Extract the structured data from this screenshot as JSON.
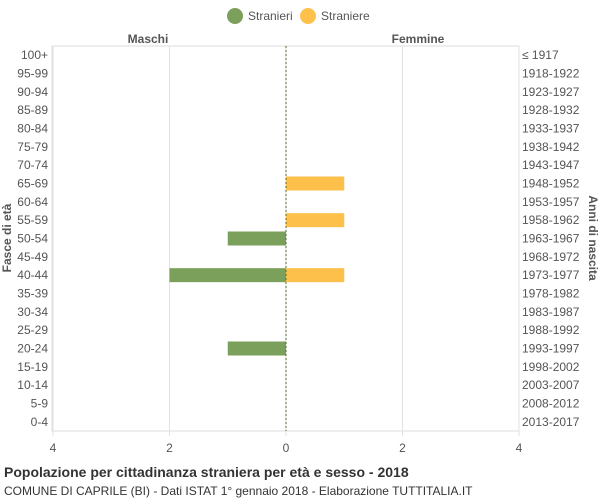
{
  "chart_data": {
    "type": "bar",
    "orientation": "horizontal-population-pyramid",
    "title": "Popolazione per cittadinanza straniera per età e sesso - 2018",
    "subtitle": "COMUNE DI CAPRILE (BI) - Dati ISTAT 1° gennaio 2018 - Elaborazione TUTTITALIA.IT",
    "ylabel_left": "Fasce di età",
    "ylabel_right": "Anni di nascita",
    "left_header": "Maschi",
    "right_header": "Femmine",
    "categories": [
      "100+",
      "95-99",
      "90-94",
      "85-89",
      "80-84",
      "75-79",
      "70-74",
      "65-69",
      "60-64",
      "55-59",
      "50-54",
      "45-49",
      "40-44",
      "35-39",
      "30-34",
      "25-29",
      "20-24",
      "15-19",
      "10-14",
      "5-9",
      "0-4"
    ],
    "birth_years": [
      "≤ 1917",
      "1918-1922",
      "1923-1927",
      "1928-1932",
      "1933-1937",
      "1938-1942",
      "1943-1947",
      "1948-1952",
      "1953-1957",
      "1958-1962",
      "1963-1967",
      "1968-1972",
      "1973-1977",
      "1978-1982",
      "1983-1987",
      "1988-1992",
      "1993-1997",
      "1998-2002",
      "2003-2007",
      "2008-2012",
      "2013-2017"
    ],
    "series": [
      {
        "name": "Stranieri",
        "color": "#7ba05b",
        "side": "left",
        "values": [
          0,
          0,
          0,
          0,
          0,
          0,
          0,
          0,
          0,
          0,
          1,
          0,
          2,
          0,
          0,
          0,
          1,
          0,
          0,
          0,
          0
        ]
      },
      {
        "name": "Straniere",
        "color": "#fdc04b",
        "side": "right",
        "values": [
          0,
          0,
          0,
          0,
          0,
          0,
          0,
          1,
          0,
          1,
          0,
          0,
          1,
          0,
          0,
          0,
          0,
          0,
          0,
          0,
          0
        ]
      }
    ],
    "xlim": [
      -4,
      4
    ],
    "xticks": [
      {
        "value": -4,
        "label": "4"
      },
      {
        "value": -2,
        "label": "2"
      },
      {
        "value": 0,
        "label": "0"
      },
      {
        "value": 2,
        "label": "2"
      },
      {
        "value": 4,
        "label": "4"
      }
    ],
    "grid": true,
    "legend_position": "top-center"
  }
}
